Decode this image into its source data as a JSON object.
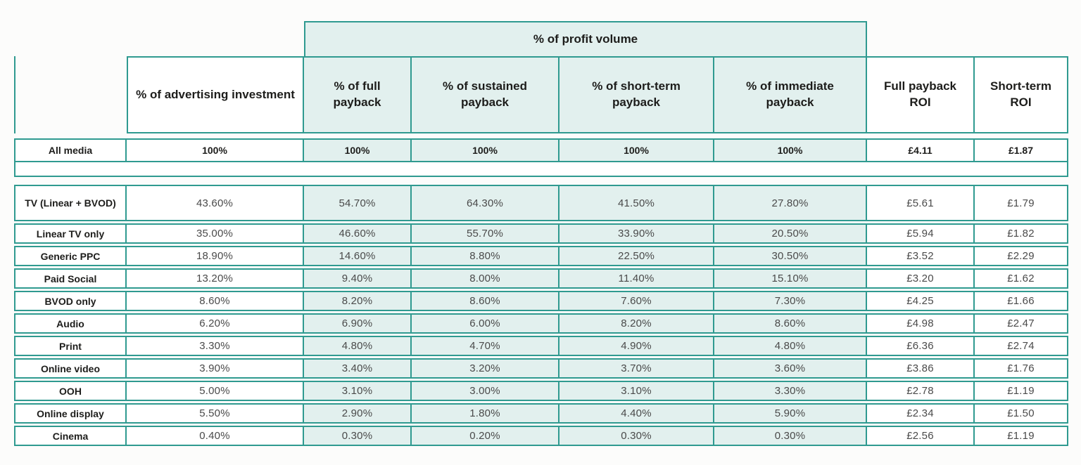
{
  "colors": {
    "border": "#2f9a90",
    "group_fill": "#e2f0ee",
    "header_text": "#1d1d1b",
    "value_text": "#4a4a4a"
  },
  "chart_data": {
    "type": "table",
    "column_group": {
      "label": "% of profit volume",
      "spans": [
        "% of full payback",
        "% of sustained payback",
        "% of short-term payback",
        "% of immediate payback"
      ]
    },
    "columns": [
      "% of advertising investment",
      "% of full payback",
      "% of sustained payback",
      "% of short-term payback",
      "% of immediate payback",
      "Full payback ROI",
      "Short-term ROI"
    ],
    "rows": [
      {
        "label": "All media",
        "values": [
          "100%",
          "100%",
          "100%",
          "100%",
          "100%",
          "£4.11",
          "£1.87"
        ]
      },
      {
        "label": "TV (Linear + BVOD)",
        "values": [
          "43.60%",
          "54.70%",
          "64.30%",
          "41.50%",
          "27.80%",
          "£5.61",
          "£1.79"
        ]
      },
      {
        "label": "Linear TV only",
        "values": [
          "35.00%",
          "46.60%",
          "55.70%",
          "33.90%",
          "20.50%",
          "£5.94",
          "£1.82"
        ]
      },
      {
        "label": "Generic PPC",
        "values": [
          "18.90%",
          "14.60%",
          "8.80%",
          "22.50%",
          "30.50%",
          "£3.52",
          "£2.29"
        ]
      },
      {
        "label": "Paid Social",
        "values": [
          "13.20%",
          "9.40%",
          "8.00%",
          "11.40%",
          "15.10%",
          "£3.20",
          "£1.62"
        ]
      },
      {
        "label": "BVOD only",
        "values": [
          "8.60%",
          "8.20%",
          "8.60%",
          "7.60%",
          "7.30%",
          "£4.25",
          "£1.66"
        ]
      },
      {
        "label": "Audio",
        "values": [
          "6.20%",
          "6.90%",
          "6.00%",
          "8.20%",
          "8.60%",
          "£4.98",
          "£2.47"
        ]
      },
      {
        "label": "Print",
        "values": [
          "3.30%",
          "4.80%",
          "4.70%",
          "4.90%",
          "4.80%",
          "£6.36",
          "£2.74"
        ]
      },
      {
        "label": "Online video",
        "values": [
          "3.90%",
          "3.40%",
          "3.20%",
          "3.70%",
          "3.60%",
          "£3.86",
          "£1.76"
        ]
      },
      {
        "label": "OOH",
        "values": [
          "5.00%",
          "3.10%",
          "3.00%",
          "3.10%",
          "3.30%",
          "£2.78",
          "£1.19"
        ]
      },
      {
        "label": "Online display",
        "values": [
          "5.50%",
          "2.90%",
          "1.80%",
          "4.40%",
          "5.90%",
          "£2.34",
          "£1.50"
        ]
      },
      {
        "label": "Cinema",
        "values": [
          "0.40%",
          "0.30%",
          "0.20%",
          "0.30%",
          "0.30%",
          "£2.56",
          "£1.19"
        ]
      }
    ]
  }
}
